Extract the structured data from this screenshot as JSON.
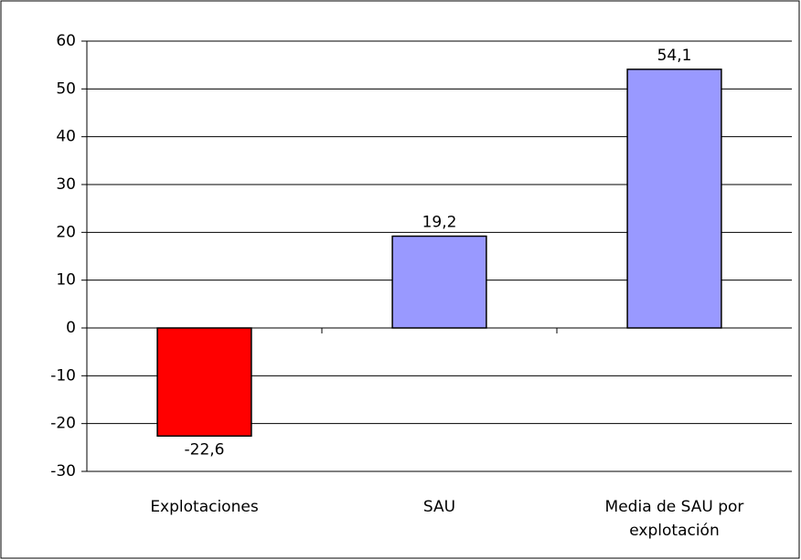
{
  "chart_data": {
    "type": "bar",
    "categories": [
      "Explotaciones",
      "SAU",
      "Media de SAU por explotación"
    ],
    "values": [
      -22.6,
      19.2,
      54.1
    ],
    "value_labels": [
      "-22,6",
      "19,2",
      "54,1"
    ],
    "colors": [
      "#ff0000",
      "#9999ff",
      "#9999ff"
    ],
    "ylim": [
      -30,
      60
    ],
    "yticks": [
      -30,
      -20,
      -10,
      0,
      10,
      20,
      30,
      40,
      50,
      60
    ],
    "grid": true
  }
}
